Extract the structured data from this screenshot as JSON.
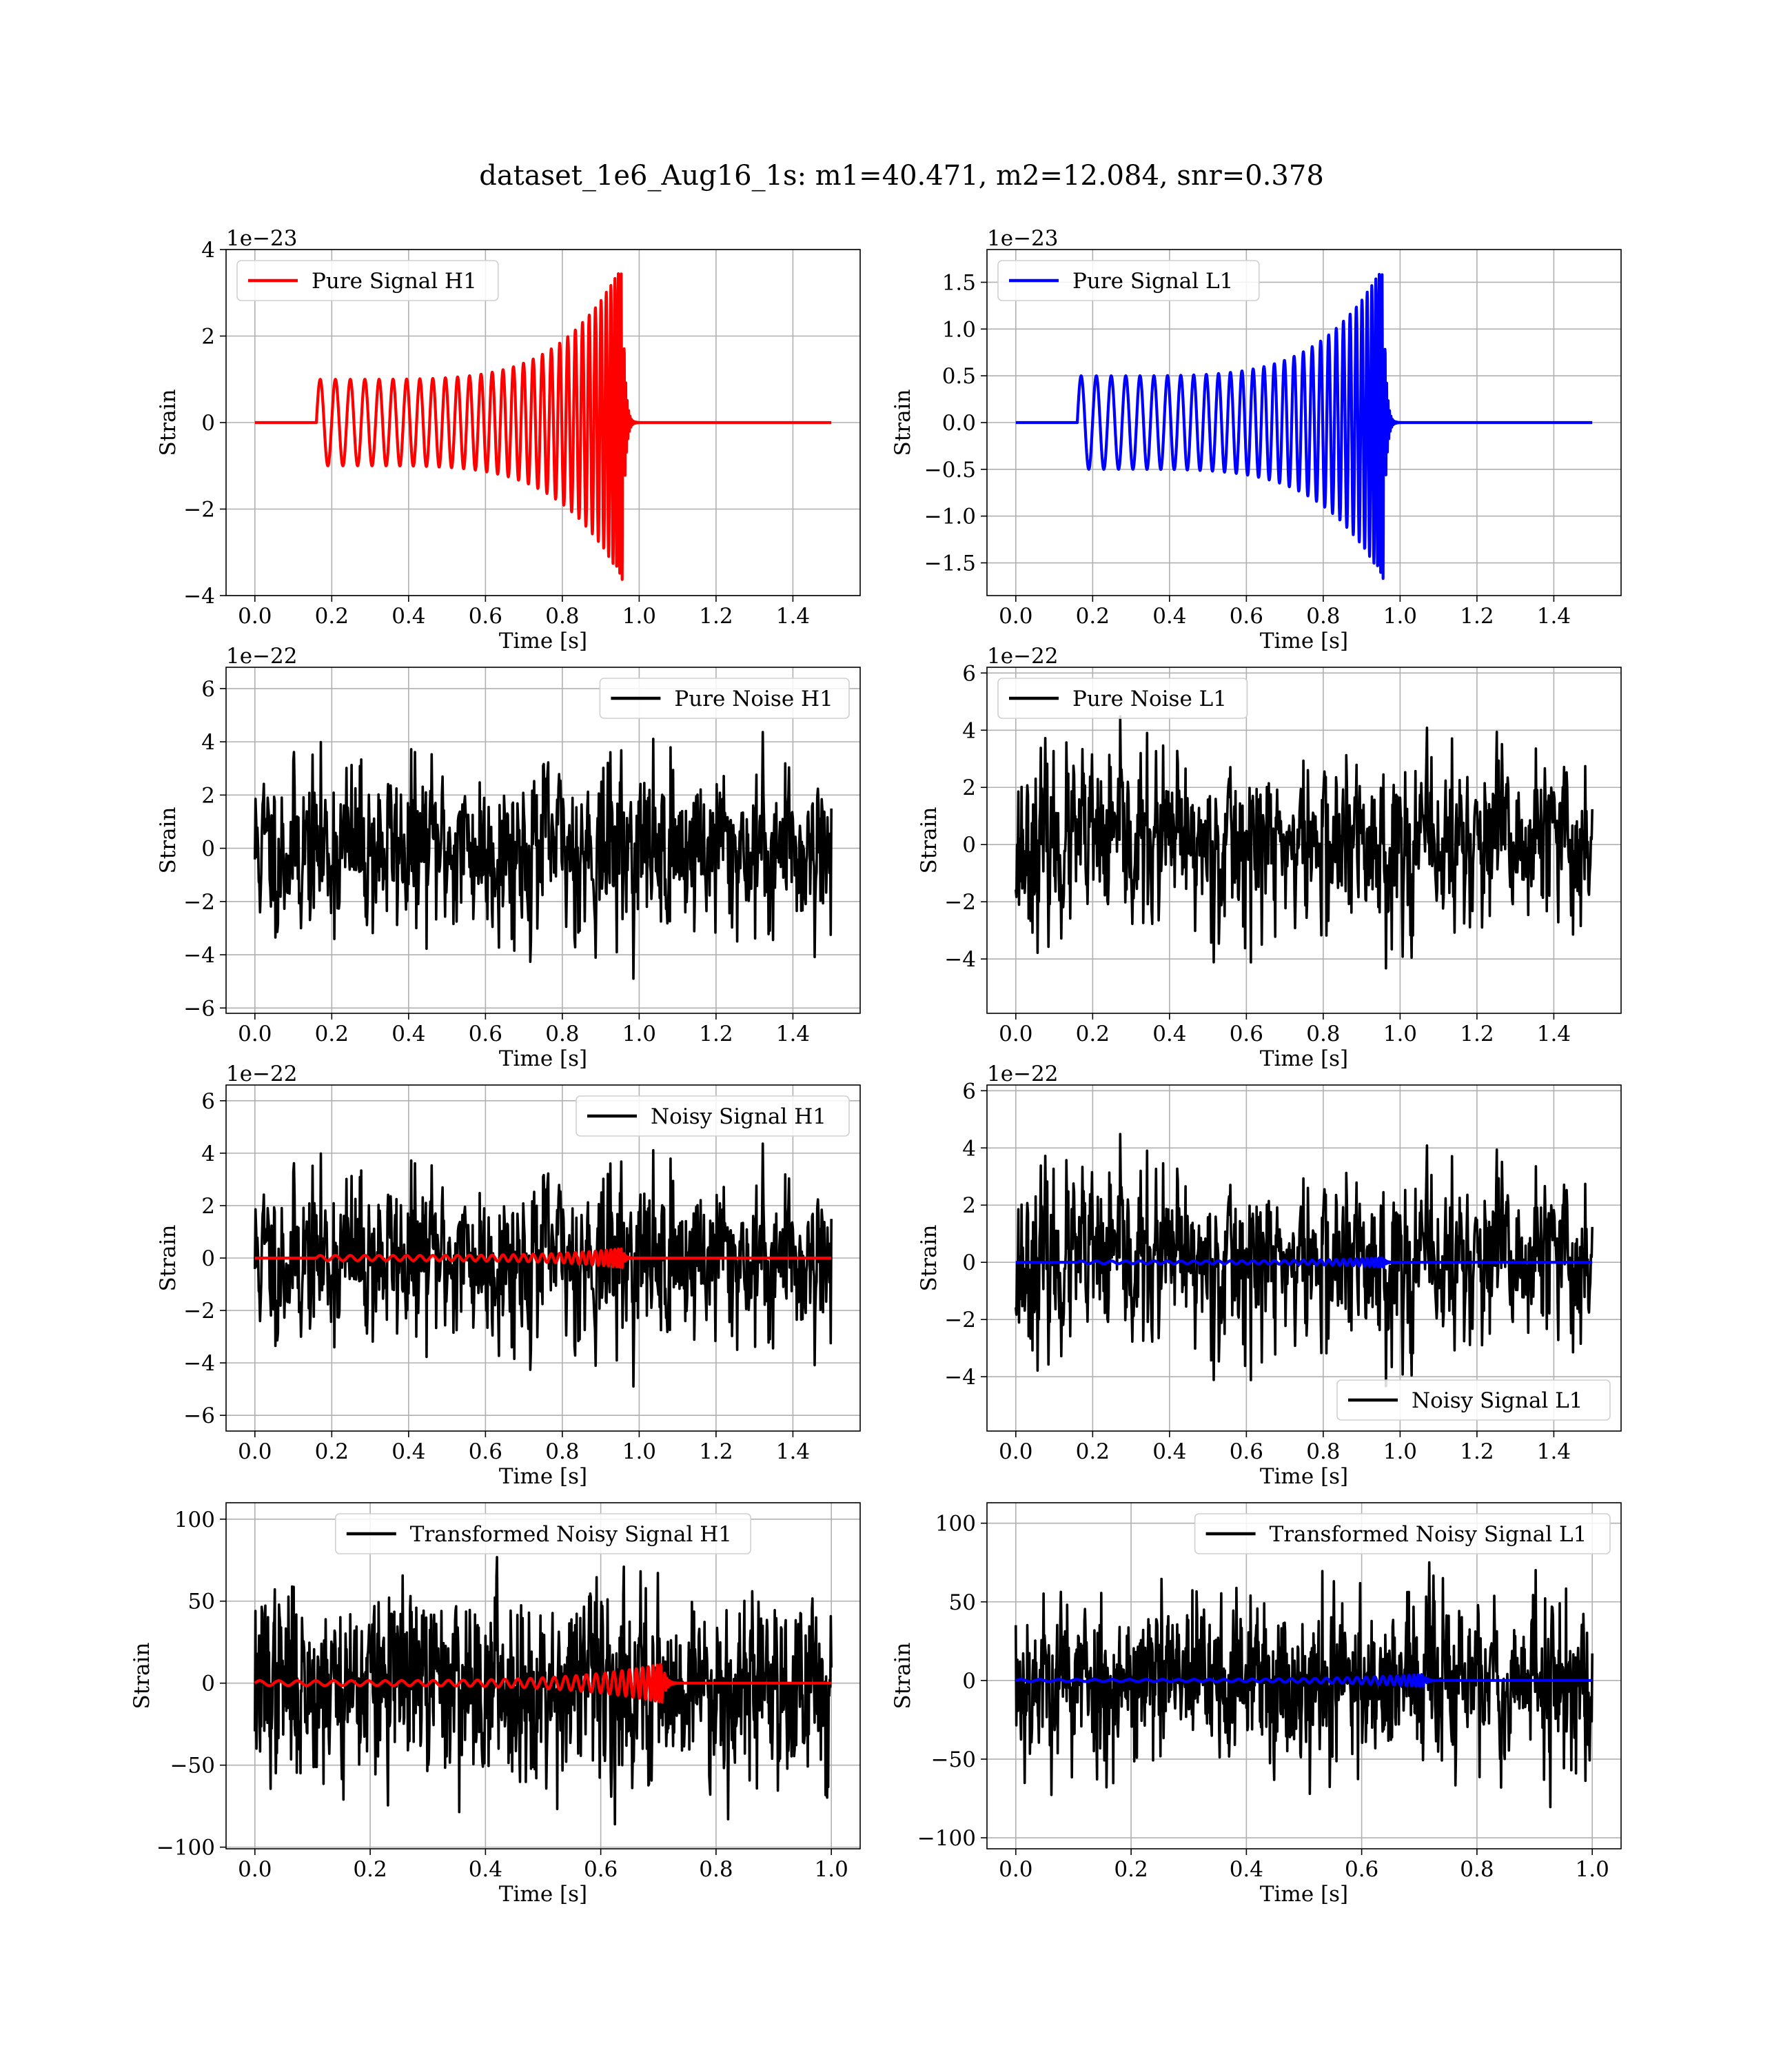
{
  "figure": {
    "title": "dataset_1e6_Aug16_1s: m1=40.471, m2=12.084, snr=0.378"
  },
  "colors": {
    "red": "#ff0000",
    "blue": "#0000ff",
    "black": "#000000",
    "grid": "#b0b0b0"
  },
  "chart_data": [
    {
      "type": "line",
      "name": "pure-signal-h1",
      "title": "",
      "xlabel": "Time [s]",
      "ylabel": "Strain",
      "offset_text": "1e−23",
      "xlim": [
        -0.075,
        1.575
      ],
      "ylim": [
        -4,
        4
      ],
      "xticks": [
        0.0,
        0.2,
        0.4,
        0.6,
        0.8,
        1.0,
        1.2,
        1.4
      ],
      "xtick_labels": [
        "0.0",
        "0.2",
        "0.4",
        "0.6",
        "0.8",
        "1.0",
        "1.2",
        "1.4"
      ],
      "yticks": [
        -4,
        -2,
        0,
        2,
        4
      ],
      "ytick_labels": [
        "−4",
        "−2",
        "0",
        "2",
        "4"
      ],
      "grid": true,
      "legend_position": "upper-left",
      "series": [
        {
          "name": "Pure Signal H1",
          "color": "#ff0000",
          "kind": "chirp",
          "params": {
            "t_start": 0.16,
            "t_merge": 0.96,
            "t_end": 1.5,
            "amp_start": 1.0,
            "amp_peak": 3.7,
            "cycles": 32,
            "noise_amp": 0
          }
        }
      ]
    },
    {
      "type": "line",
      "name": "pure-signal-l1",
      "title": "",
      "xlabel": "Time [s]",
      "ylabel": "Strain",
      "offset_text": "1e−23",
      "xlim": [
        -0.075,
        1.575
      ],
      "ylim": [
        -1.85,
        1.85
      ],
      "xticks": [
        0.0,
        0.2,
        0.4,
        0.6,
        0.8,
        1.0,
        1.2,
        1.4
      ],
      "xtick_labels": [
        "0.0",
        "0.2",
        "0.4",
        "0.6",
        "0.8",
        "1.0",
        "1.2",
        "1.4"
      ],
      "yticks": [
        -1.5,
        -1.0,
        -0.5,
        0.0,
        0.5,
        1.0,
        1.5
      ],
      "ytick_labels": [
        "−1.5",
        "−1.0",
        "−0.5",
        "0.0",
        "0.5",
        "1.0",
        "1.5"
      ],
      "grid": true,
      "legend_position": "upper-left",
      "series": [
        {
          "name": "Pure Signal L1",
          "color": "#0000ff",
          "kind": "chirp",
          "params": {
            "t_start": 0.16,
            "t_merge": 0.96,
            "t_end": 1.5,
            "amp_start": 0.5,
            "amp_peak": 1.7,
            "cycles": 32,
            "noise_amp": 0
          }
        }
      ]
    },
    {
      "type": "line",
      "name": "pure-noise-h1",
      "title": "",
      "xlabel": "Time [s]",
      "ylabel": "Strain",
      "offset_text": "1e−22",
      "xlim": [
        -0.075,
        1.575
      ],
      "ylim": [
        -6.2,
        6.8
      ],
      "xticks": [
        0.0,
        0.2,
        0.4,
        0.6,
        0.8,
        1.0,
        1.2,
        1.4
      ],
      "xtick_labels": [
        "0.0",
        "0.2",
        "0.4",
        "0.6",
        "0.8",
        "1.0",
        "1.2",
        "1.4"
      ],
      "yticks": [
        -6,
        -4,
        -2,
        0,
        2,
        4,
        6
      ],
      "ytick_labels": [
        "−6",
        "−4",
        "−2",
        "0",
        "2",
        "4",
        "6"
      ],
      "grid": true,
      "legend_position": "upper-right",
      "series": [
        {
          "name": "Pure Noise H1",
          "color": "#000000",
          "kind": "noise",
          "params": {
            "t_end": 1.5,
            "amp": 1.7,
            "seed": 11,
            "n": 900
          }
        }
      ]
    },
    {
      "type": "line",
      "name": "pure-noise-l1",
      "title": "",
      "xlabel": "Time [s]",
      "ylabel": "Strain",
      "offset_text": "1e−22",
      "xlim": [
        -0.075,
        1.575
      ],
      "ylim": [
        -5.9,
        6.2
      ],
      "xticks": [
        0.0,
        0.2,
        0.4,
        0.6,
        0.8,
        1.0,
        1.2,
        1.4
      ],
      "xtick_labels": [
        "0.0",
        "0.2",
        "0.4",
        "0.6",
        "0.8",
        "1.0",
        "1.2",
        "1.4"
      ],
      "yticks": [
        -4,
        -2,
        0,
        2,
        4,
        6
      ],
      "ytick_labels": [
        "−4",
        "−2",
        "0",
        "2",
        "4",
        "6"
      ],
      "grid": true,
      "legend_position": "upper-left",
      "series": [
        {
          "name": "Pure Noise L1",
          "color": "#000000",
          "kind": "noise",
          "params": {
            "t_end": 1.5,
            "amp": 1.6,
            "seed": 23,
            "n": 900
          }
        }
      ]
    },
    {
      "type": "line",
      "name": "noisy-signal-h1",
      "title": "",
      "xlabel": "Time [s]",
      "ylabel": "Strain",
      "offset_text": "1e−22",
      "xlim": [
        -0.075,
        1.575
      ],
      "ylim": [
        -6.6,
        6.6
      ],
      "xticks": [
        0.0,
        0.2,
        0.4,
        0.6,
        0.8,
        1.0,
        1.2,
        1.4
      ],
      "xtick_labels": [
        "0.0",
        "0.2",
        "0.4",
        "0.6",
        "0.8",
        "1.0",
        "1.2",
        "1.4"
      ],
      "yticks": [
        -6,
        -4,
        -2,
        0,
        2,
        4,
        6
      ],
      "ytick_labels": [
        "−6",
        "−4",
        "−2",
        "0",
        "2",
        "4",
        "6"
      ],
      "grid": true,
      "legend_position": "upper-right",
      "series": [
        {
          "name": "Noisy Signal H1",
          "color": "#000000",
          "kind": "noise",
          "params": {
            "t_end": 1.5,
            "amp": 1.7,
            "seed": 11,
            "n": 900
          }
        },
        {
          "name": "",
          "color": "#ff0000",
          "kind": "chirp",
          "params": {
            "t_start": 0.16,
            "t_merge": 0.96,
            "t_end": 1.5,
            "amp_start": 0.1,
            "amp_peak": 0.37,
            "cycles": 32,
            "noise_amp": 0
          }
        }
      ]
    },
    {
      "type": "line",
      "name": "noisy-signal-l1",
      "title": "",
      "xlabel": "Time [s]",
      "ylabel": "Strain",
      "offset_text": "1e−22",
      "xlim": [
        -0.075,
        1.575
      ],
      "ylim": [
        -5.9,
        6.2
      ],
      "xticks": [
        0.0,
        0.2,
        0.4,
        0.6,
        0.8,
        1.0,
        1.2,
        1.4
      ],
      "xtick_labels": [
        "0.0",
        "0.2",
        "0.4",
        "0.6",
        "0.8",
        "1.0",
        "1.2",
        "1.4"
      ],
      "yticks": [
        -4,
        -2,
        0,
        2,
        4,
        6
      ],
      "ytick_labels": [
        "−4",
        "−2",
        "0",
        "2",
        "4",
        "6"
      ],
      "grid": true,
      "legend_position": "lower-right",
      "series": [
        {
          "name": "Noisy Signal L1",
          "color": "#000000",
          "kind": "noise",
          "params": {
            "t_end": 1.5,
            "amp": 1.6,
            "seed": 23,
            "n": 900
          }
        },
        {
          "name": "",
          "color": "#0000ff",
          "kind": "chirp",
          "params": {
            "t_start": 0.16,
            "t_merge": 0.96,
            "t_end": 1.5,
            "amp_start": 0.05,
            "amp_peak": 0.17,
            "cycles": 32,
            "noise_amp": 0
          }
        }
      ]
    },
    {
      "type": "line",
      "name": "transformed-noisy-signal-h1",
      "title": "",
      "xlabel": "Time [s]",
      "ylabel": "Strain",
      "offset_text": "",
      "xlim": [
        -0.05,
        1.05
      ],
      "ylim": [
        -101,
        110
      ],
      "xticks": [
        0.0,
        0.2,
        0.4,
        0.6,
        0.8,
        1.0
      ],
      "xtick_labels": [
        "0.0",
        "0.2",
        "0.4",
        "0.6",
        "0.8",
        "1.0"
      ],
      "yticks": [
        -100,
        -50,
        0,
        50,
        100
      ],
      "ytick_labels": [
        "−100",
        "−50",
        "0",
        "50",
        "100"
      ],
      "grid": true,
      "legend_position": "upper-center",
      "series": [
        {
          "name": "Transformed Noisy Signal H1",
          "color": "#000000",
          "kind": "noise",
          "params": {
            "t_end": 1.0,
            "amp": 30,
            "seed": 37,
            "n": 1100
          }
        },
        {
          "name": "",
          "color": "#ff0000",
          "kind": "chirp",
          "params": {
            "t_start": 0.0,
            "t_merge": 0.71,
            "t_end": 1.0,
            "amp_start": 1.5,
            "amp_peak": 12,
            "cycles": 34,
            "noise_amp": 0
          }
        }
      ]
    },
    {
      "type": "line",
      "name": "transformed-noisy-signal-l1",
      "title": "",
      "xlabel": "Time [s]",
      "ylabel": "Strain",
      "offset_text": "",
      "xlim": [
        -0.05,
        1.05
      ],
      "ylim": [
        -107,
        113
      ],
      "xticks": [
        0.0,
        0.2,
        0.4,
        0.6,
        0.8,
        1.0
      ],
      "xtick_labels": [
        "0.0",
        "0.2",
        "0.4",
        "0.6",
        "0.8",
        "1.0"
      ],
      "yticks": [
        -100,
        -50,
        0,
        50,
        100
      ],
      "ytick_labels": [
        "−100",
        "−50",
        "0",
        "50",
        "100"
      ],
      "grid": true,
      "legend_position": "upper-right",
      "series": [
        {
          "name": "Transformed Noisy Signal L1",
          "color": "#000000",
          "kind": "noise",
          "params": {
            "t_end": 1.0,
            "amp": 28,
            "seed": 53,
            "n": 1100
          }
        },
        {
          "name": "",
          "color": "#0000ff",
          "kind": "chirp",
          "params": {
            "t_start": 0.0,
            "t_merge": 0.71,
            "t_end": 1.0,
            "amp_start": 0.7,
            "amp_peak": 4,
            "cycles": 34,
            "noise_amp": 0
          }
        }
      ]
    }
  ]
}
